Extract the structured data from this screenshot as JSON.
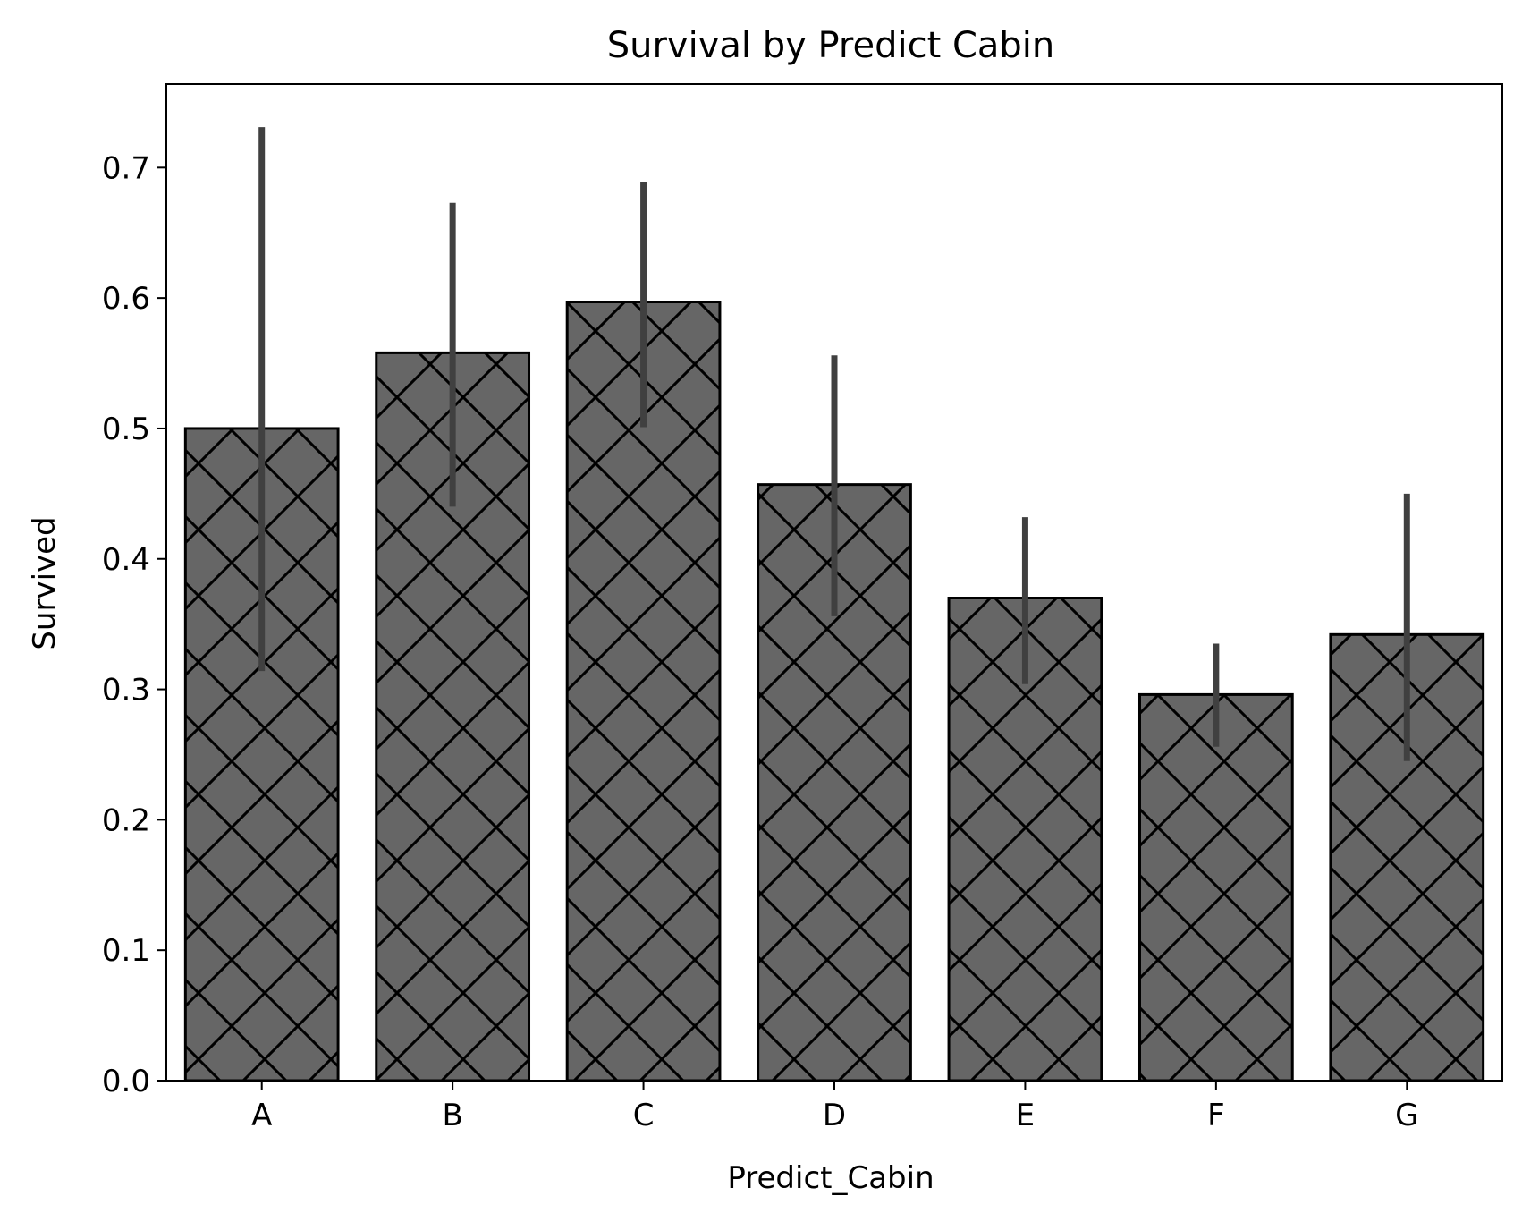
{
  "chart_data": {
    "type": "bar",
    "title": "Survival by Predict Cabin",
    "xlabel": "Predict_Cabin",
    "ylabel": "Survived",
    "categories": [
      "A",
      "B",
      "C",
      "D",
      "E",
      "F",
      "G"
    ],
    "values": [
      0.5,
      0.558,
      0.597,
      0.457,
      0.37,
      0.296,
      0.342
    ],
    "error_bars": [
      [
        0.314,
        0.731
      ],
      [
        0.44,
        0.673
      ],
      [
        0.501,
        0.689
      ],
      [
        0.356,
        0.556
      ],
      [
        0.304,
        0.432
      ],
      [
        0.256,
        0.335
      ],
      [
        0.245,
        0.45
      ]
    ],
    "ylim": [
      0,
      0.764
    ],
    "yticks": [
      0.0,
      0.1,
      0.2,
      0.3,
      0.4,
      0.5,
      0.6,
      0.7
    ],
    "ytick_labels": [
      "0.0",
      "0.1",
      "0.2",
      "0.3",
      "0.4",
      "0.5",
      "0.6",
      "0.7"
    ],
    "grid": false,
    "legend": "none",
    "bar_fill": "crosshatch",
    "colors": {
      "bar": "#666666",
      "bar_edge": "#000000",
      "hatch": "#000000",
      "error_bar": "#404040",
      "axes": "#000000",
      "background": "#ffffff"
    }
  }
}
